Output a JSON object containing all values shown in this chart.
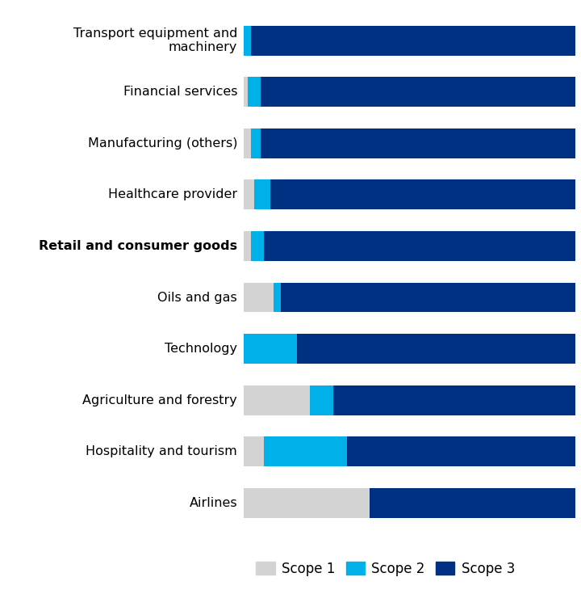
{
  "categories": [
    "Transport equipment and\nmachinery",
    "Financial services",
    "Manufacturing (others)",
    "Healthcare provider",
    "Retail and consumer goods",
    "Oils and gas",
    "Technology",
    "Agriculture and forestry",
    "Hospitality and tourism",
    "Airlines"
  ],
  "bold_categories": [
    "Retail and consumer goods"
  ],
  "scope1": [
    0,
    1,
    2,
    3,
    2,
    9,
    0,
    20,
    6,
    38
  ],
  "scope2": [
    2,
    4,
    3,
    5,
    4,
    2,
    16,
    7,
    25,
    0
  ],
  "scope3": [
    98,
    95,
    95,
    92,
    94,
    89,
    84,
    73,
    69,
    62
  ],
  "colors": {
    "scope1": "#d3d3d3",
    "scope2": "#00b0e8",
    "scope3": "#003082"
  },
  "legend_labels": [
    "Scope 1",
    "Scope 2",
    "Scope 3"
  ],
  "background_color": "#ffffff"
}
